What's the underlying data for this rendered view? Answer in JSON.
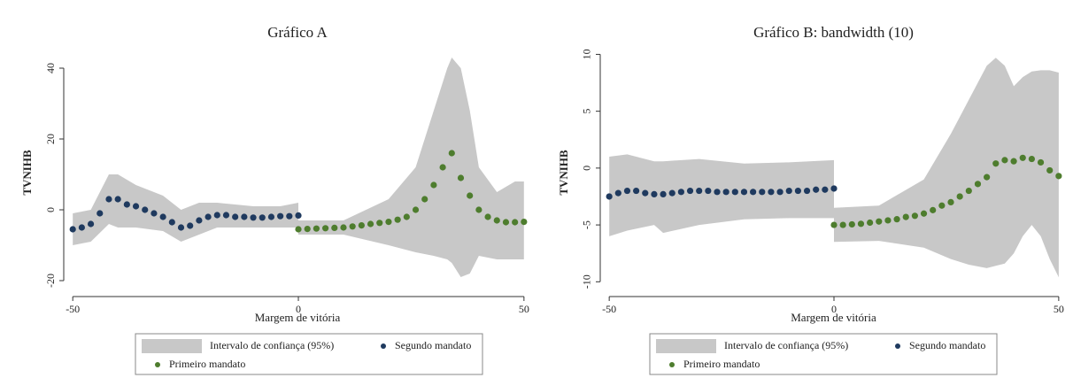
{
  "chart_data": [
    {
      "type": "scatter",
      "title": "Gráfico A",
      "xlabel": "Margem de vitória",
      "ylabel": "TVNIHB",
      "xlim": [
        -52,
        51.6
      ],
      "ylim": [
        -24.5,
        45.5
      ],
      "xticks": [
        -50,
        0,
        50
      ],
      "yticks": [
        -20,
        0,
        20,
        40
      ],
      "legend": "bottom",
      "series": [
        {
          "name": "Intervalo de confiança (95%)",
          "type": "band",
          "color": "#c8c8c8",
          "x": [
            -50,
            -46,
            -42,
            -40,
            -36,
            -30,
            -26,
            -22,
            -18,
            -10,
            -4,
            0,
            null,
            0,
            10,
            20,
            26,
            30,
            33,
            34,
            36,
            38,
            40,
            44,
            48,
            50
          ],
          "lower": [
            -10,
            -9,
            -4,
            -5,
            -5,
            -6,
            -9,
            -7,
            -5,
            -5,
            -5,
            -5,
            null,
            -7,
            -7,
            -10,
            -12,
            -13,
            -14,
            -15,
            -19,
            -18,
            -13,
            -14,
            -14,
            -14
          ],
          "upper": [
            -1,
            0,
            10,
            10,
            7,
            4,
            0,
            2,
            2,
            1,
            1,
            2,
            null,
            -3,
            -3,
            3,
            12,
            28,
            40,
            43,
            40,
            28,
            12,
            5,
            8,
            8
          ]
        },
        {
          "name": "Segundo mandato",
          "color": "#1f3a5f",
          "x": [
            -50,
            -48,
            -46,
            -44,
            -42,
            -40,
            -38,
            -36,
            -34,
            -32,
            -30,
            -28,
            -26,
            -24,
            -22,
            -20,
            -18,
            -16,
            -14,
            -12,
            -10,
            -8,
            -6,
            -4,
            -2,
            0
          ],
          "values": [
            -5.5,
            -5,
            -4,
            -1,
            3,
            3,
            1.5,
            1,
            0,
            -1,
            -2,
            -3.5,
            -5,
            -4.5,
            -3,
            -2,
            -1.5,
            -1.5,
            -2,
            -2,
            -2.2,
            -2.2,
            -2,
            -1.8,
            -1.8,
            -1.6
          ]
        },
        {
          "name": "Primeiro mandato",
          "color": "#4e7d2e",
          "x": [
            0,
            2,
            4,
            6,
            8,
            10,
            12,
            14,
            16,
            18,
            20,
            22,
            24,
            26,
            28,
            30,
            32,
            34,
            36,
            38,
            40,
            42,
            44,
            46,
            48,
            50
          ],
          "values": [
            -5.5,
            -5.4,
            -5.3,
            -5.2,
            -5.1,
            -5,
            -4.7,
            -4.4,
            -4,
            -3.7,
            -3.4,
            -2.8,
            -2,
            0,
            3,
            7,
            12,
            16,
            9,
            4,
            0,
            -2,
            -3,
            -3.5,
            -3.5,
            -3.4
          ]
        }
      ]
    },
    {
      "type": "scatter",
      "title": "Gráfico B: bandwidth (10)",
      "xlabel": "Margem de vitória",
      "ylabel": "TVNIHB",
      "xlim": [
        -52,
        51.8
      ],
      "ylim": [
        -11.3,
        10.5
      ],
      "xticks": [
        -50,
        0,
        50
      ],
      "yticks": [
        -10,
        -5,
        0,
        5,
        10
      ],
      "legend": "bottom",
      "series": [
        {
          "name": "Intervalo de confiança (95%)",
          "type": "band",
          "color": "#c8c8c8",
          "x": [
            -50,
            -46,
            -40,
            -38,
            -30,
            -20,
            -10,
            0,
            null,
            0,
            10,
            20,
            26,
            30,
            34,
            36,
            38,
            40,
            42,
            44,
            46,
            48,
            50
          ],
          "lower": [
            -6,
            -5.5,
            -5,
            -5.7,
            -5,
            -4.5,
            -4.4,
            -4.4,
            null,
            -6.5,
            -6.4,
            -7,
            -8,
            -8.5,
            -8.8,
            -8.6,
            -8.4,
            -7.5,
            -6,
            -5,
            -6,
            -8,
            -9.6
          ],
          "upper": [
            1,
            1.2,
            0.6,
            0.6,
            0.8,
            0.4,
            0.5,
            0.7,
            null,
            -3.5,
            -3.3,
            -1,
            3,
            6,
            9,
            9.7,
            9,
            7.2,
            8,
            8.5,
            8.6,
            8.6,
            8.4
          ]
        },
        {
          "name": "Segundo mandato",
          "color": "#1f3a5f",
          "x": [
            -50,
            -48,
            -46,
            -44,
            -42,
            -40,
            -38,
            -36,
            -34,
            -32,
            -30,
            -28,
            -26,
            -24,
            -22,
            -20,
            -18,
            -16,
            -14,
            -12,
            -10,
            -8,
            -6,
            -4,
            -2,
            0
          ],
          "values": [
            -2.5,
            -2.2,
            -2,
            -2,
            -2.2,
            -2.3,
            -2.3,
            -2.2,
            -2.1,
            -2,
            -2,
            -2,
            -2.1,
            -2.1,
            -2.1,
            -2.1,
            -2.1,
            -2.1,
            -2.1,
            -2.1,
            -2,
            -2,
            -2,
            -1.9,
            -1.9,
            -1.8
          ]
        },
        {
          "name": "Primeiro mandato",
          "color": "#4e7d2e",
          "x": [
            0,
            2,
            4,
            6,
            8,
            10,
            12,
            14,
            16,
            18,
            20,
            22,
            24,
            26,
            28,
            30,
            32,
            34,
            36,
            38,
            40,
            42,
            44,
            46,
            48,
            50
          ],
          "values": [
            -5,
            -5,
            -4.95,
            -4.9,
            -4.8,
            -4.7,
            -4.6,
            -4.5,
            -4.3,
            -4.2,
            -4,
            -3.7,
            -3.3,
            -3,
            -2.5,
            -2,
            -1.4,
            -0.8,
            0.4,
            0.7,
            0.6,
            0.9,
            0.8,
            0.5,
            -0.2,
            -0.7
          ]
        }
      ]
    }
  ]
}
